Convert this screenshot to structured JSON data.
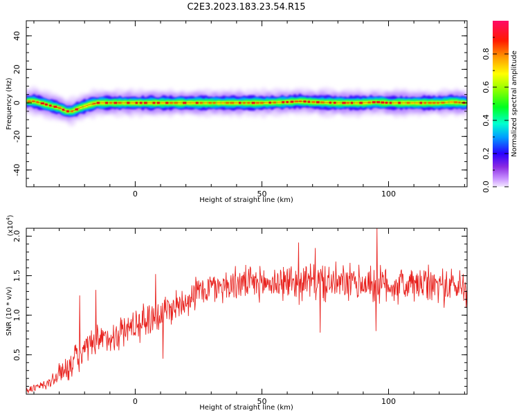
{
  "title": "C2E3.2023.183.23.54.R15",
  "colors": {
    "snr_line": "#e8211d",
    "axis": "#000000",
    "background": "#ffffff"
  },
  "colorbar": {
    "label": "Normalized spectral amplitude",
    "ticks": [
      "0.0",
      "0.2",
      "0.4",
      "0.6",
      "0.8"
    ],
    "tick_values": [
      0.0,
      0.2,
      0.4,
      0.6,
      0.8
    ],
    "range": [
      0,
      1
    ],
    "colormap": "gist_rainbow (white-violet to red)"
  },
  "chart_data": [
    {
      "type": "heatmap",
      "title": "C2E3.2023.183.23.54.R15",
      "xlabel": "Height of straight line (km)",
      "ylabel": "Frequency (Hz)",
      "xlim": [
        -43,
        131
      ],
      "ylim": [
        -50,
        49
      ],
      "x_ticks": [
        0,
        50,
        100
      ],
      "y_ticks": [
        40,
        20,
        0,
        -20,
        -40
      ],
      "x_tick_labels": [
        "0",
        "50",
        "100"
      ],
      "y_tick_labels": [
        "40",
        "20",
        "0",
        "-20",
        "-40"
      ],
      "grid": false,
      "ridge": {
        "description": "dominant spectral peak near 0 Hz",
        "x": [
          -43,
          -40,
          -35,
          -30,
          -27,
          -25,
          -22,
          -18,
          -15,
          -10,
          0,
          10,
          20,
          30,
          40,
          50,
          60,
          65,
          70,
          80,
          90,
          95,
          100,
          110,
          120,
          125,
          131
        ],
        "freq_center": [
          1,
          1,
          -1,
          -3,
          -5,
          -5,
          -3,
          -1,
          0,
          0,
          0,
          0,
          0,
          0,
          0,
          0,
          0.5,
          1,
          0.5,
          0,
          0,
          0.5,
          0,
          0,
          0,
          0.5,
          0
        ],
        "half_width_hz": 4
      }
    },
    {
      "type": "line",
      "xlabel": "Height of straight line (km)",
      "ylabel": "SNR (10 * v/v)",
      "y_multiplier_label": "(x10",
      "y_multiplier_exp": "4",
      "y_multiplier_close": ")",
      "xlim": [
        -43,
        131
      ],
      "ylim": [
        0.0,
        2.1
      ],
      "x_ticks": [
        0,
        50,
        100
      ],
      "y_ticks": [
        0.5,
        1.0,
        1.5,
        2.0
      ],
      "x_tick_labels": [
        "0",
        "50",
        "100"
      ],
      "y_tick_labels": [
        "0.5",
        "1.0",
        "1.5",
        "2.0"
      ],
      "grid": false,
      "series": [
        {
          "trend": {
            "x": [
              -43,
              -35,
              -30,
              -25,
              -20,
              -15,
              -10,
              -5,
              0,
              5,
              10,
              15,
              20,
              25,
              30,
              40,
              50,
              60,
              70,
              80,
              90,
              100,
              110,
              120,
              131
            ],
            "y": [
              0.05,
              0.12,
              0.25,
              0.4,
              0.55,
              0.65,
              0.72,
              0.8,
              0.88,
              0.95,
              1.02,
              1.1,
              1.2,
              1.3,
              1.35,
              1.4,
              1.4,
              1.42,
              1.42,
              1.4,
              1.4,
              1.38,
              1.38,
              1.38,
              1.35
            ]
          },
          "noise_amplitude": [
            0.05,
            0.08,
            0.15,
            0.2,
            0.22,
            0.22,
            0.22,
            0.22,
            0.22,
            0.25,
            0.25,
            0.22,
            0.22,
            0.22,
            0.22,
            0.22,
            0.22,
            0.25,
            0.25,
            0.25,
            0.25,
            0.25,
            0.25,
            0.25,
            0.25
          ],
          "peaks": [
            {
              "x": 95.5,
              "y": 2.1
            },
            {
              "x": 64.5,
              "y": 1.92
            },
            {
              "x": 71,
              "y": 1.85
            },
            {
              "x": 8,
              "y": 1.52
            },
            {
              "x": -22,
              "y": 1.25
            },
            {
              "x": -15.5,
              "y": 1.32
            },
            {
              "x": 11,
              "y": 0.45
            },
            {
              "x": 95,
              "y": 0.8
            },
            {
              "x": 73,
              "y": 0.78
            }
          ]
        }
      ]
    }
  ]
}
